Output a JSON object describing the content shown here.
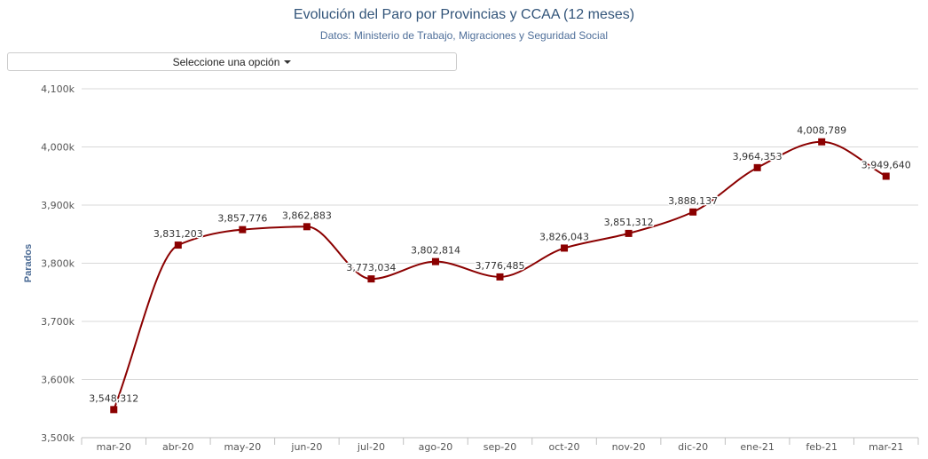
{
  "header": {
    "title": "Evolución del Paro por Provincias y CCAA (12 meses)",
    "subtitle": "Datos: Ministerio de Trabajo, Migraciones y Seguridad Social"
  },
  "selector": {
    "label": "Seleccione una opción"
  },
  "colors": {
    "line": "#8b0000",
    "marker": "#8b0000",
    "grid": "#d8d8d8"
  },
  "chart_data": {
    "type": "line",
    "title": "Evolución del Paro por Provincias y CCAA (12 meses)",
    "subtitle": "Datos: Ministerio de Trabajo, Migraciones y Seguridad Social",
    "xlabel": "",
    "ylabel": "Parados",
    "ylim": [
      3500000,
      4100000
    ],
    "yticks": [
      3500000,
      3600000,
      3700000,
      3800000,
      3900000,
      4000000,
      4100000
    ],
    "ytick_labels": [
      "3,500k",
      "3,600k",
      "3,700k",
      "3,800k",
      "3,900k",
      "4,000k",
      "4,100k"
    ],
    "grid": true,
    "categories": [
      "mar-20",
      "abr-20",
      "may-20",
      "jun-20",
      "jul-20",
      "ago-20",
      "sep-20",
      "oct-20",
      "nov-20",
      "dic-20",
      "ene-21",
      "feb-21",
      "mar-21"
    ],
    "values": [
      3548312,
      3831203,
      3857776,
      3862883,
      3773034,
      3802814,
      3776485,
      3826043,
      3851312,
      3888137,
      3964353,
      4008789,
      3949640
    ],
    "data_labels": [
      "3,548,312",
      "3,831,203",
      "3,857,776",
      "3,862,883",
      "3,773,034",
      "3,802,814",
      "3,776,485",
      "3,826,043",
      "3,851,312",
      "3,888,137",
      "3,964,353",
      "4,008,789",
      "3,949,640"
    ]
  }
}
